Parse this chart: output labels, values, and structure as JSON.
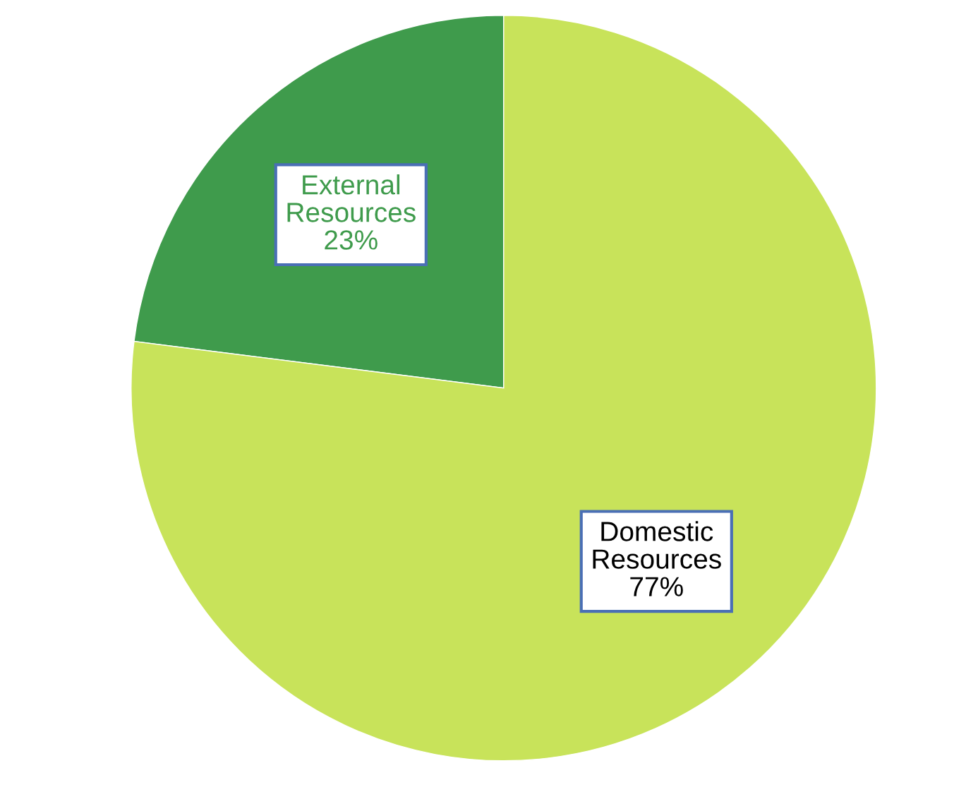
{
  "chart_data": {
    "type": "pie",
    "categories": [
      "External Resources",
      "Domestic Resources"
    ],
    "values": [
      23,
      77
    ],
    "colors": [
      "#3f9b4c",
      "#c8e35a"
    ],
    "value_labels": [
      "23%",
      "77%"
    ]
  }
}
